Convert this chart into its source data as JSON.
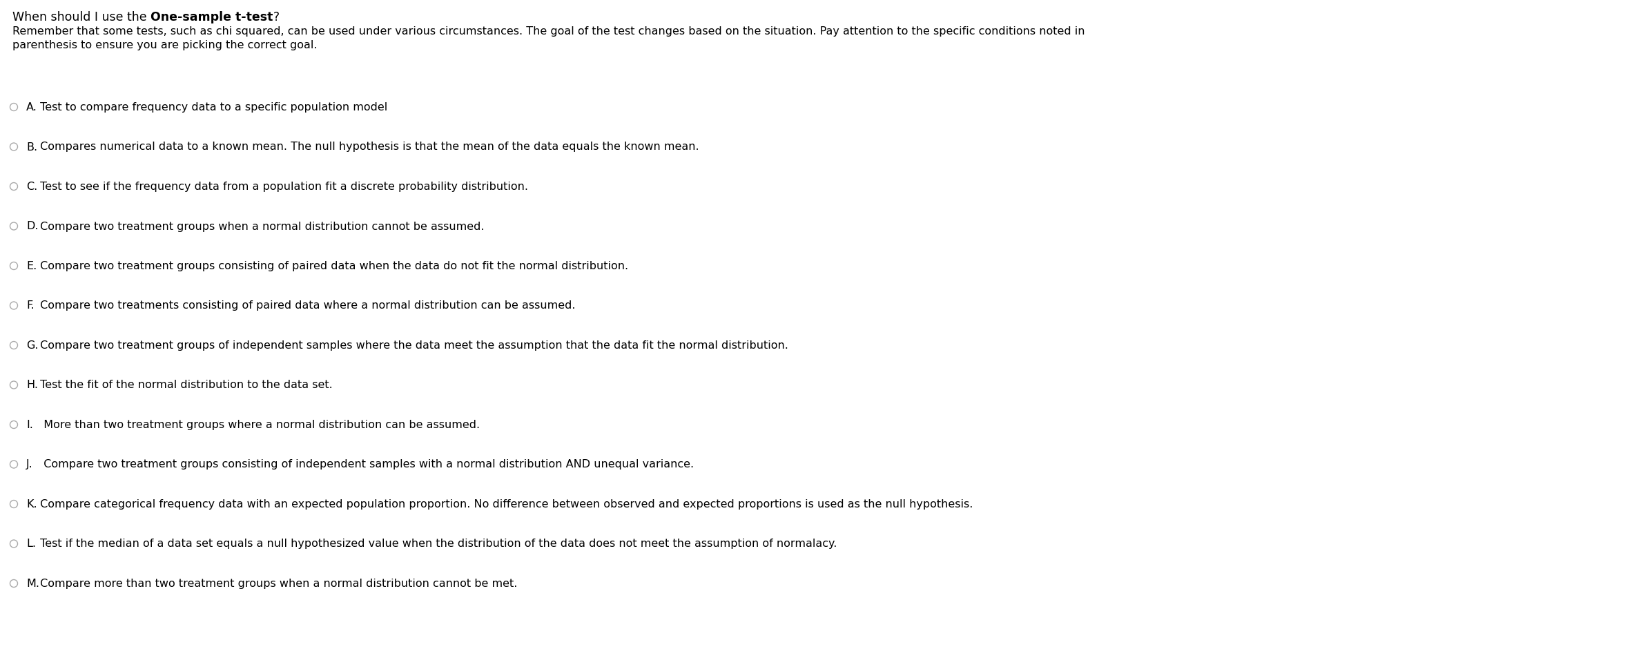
{
  "title_normal": "When should I use the ",
  "title_bold": "One-sample t-test",
  "title_end": "?",
  "subtitle": "Remember that some tests, such as chi squared, can be used under various circumstances. The goal of the test changes based on the situation. Pay attention to the specific conditions noted in\nparenthesis to ensure you are picking the correct goal.",
  "options": [
    {
      "label": "A.",
      "text": " Test to compare frequency data to a specific population model",
      "radio_filled": false
    },
    {
      "label": "B.",
      "text": " Compares numerical data to a known mean. The null hypothesis is that the mean of the data equals the known mean.",
      "radio_filled": false
    },
    {
      "label": "C.",
      "text": " Test to see if the frequency data from a population fit a discrete probability distribution.",
      "radio_filled": false
    },
    {
      "label": "D.",
      "text": " Compare two treatment groups when a normal distribution cannot be assumed.",
      "radio_filled": false
    },
    {
      "label": "E.",
      "text": " Compare two treatment groups consisting of paired data when the data do not fit the normal distribution.",
      "radio_filled": false
    },
    {
      "label": "F.",
      "text": " Compare two treatments consisting of paired data where a normal distribution can be assumed.",
      "radio_filled": false
    },
    {
      "label": "G.",
      "text": " Compare two treatment groups of independent samples where the data meet the assumption that the data fit the normal distribution.",
      "radio_filled": false
    },
    {
      "label": "H.",
      "text": " Test the fit of the normal distribution to the data set.",
      "radio_filled": false
    },
    {
      "label": "I.",
      "text": "  More than two treatment groups where a normal distribution can be assumed.",
      "radio_filled": false
    },
    {
      "label": "J.",
      "text": "  Compare two treatment groups consisting of independent samples with a normal distribution AND unequal variance.",
      "radio_filled": false
    },
    {
      "label": "K.",
      "text": " Compare categorical frequency data with an expected population proportion. No difference between observed and expected proportions is used as the null hypothesis.",
      "radio_filled": false
    },
    {
      "label": "L.",
      "text": " Test if the median of a data set equals a null hypothesized value when the distribution of the data does not meet the assumption of normalacy.",
      "radio_filled": false
    },
    {
      "label": "M.",
      "text": " Compare more than two treatment groups when a normal distribution cannot be met.",
      "radio_filled": false
    }
  ],
  "bg_color": "#ffffff",
  "text_color": "#000000",
  "radio_edge_color": "#aaaaaa",
  "title_fontsize": 12.5,
  "subtitle_fontsize": 11.5,
  "option_fontsize": 11.5
}
